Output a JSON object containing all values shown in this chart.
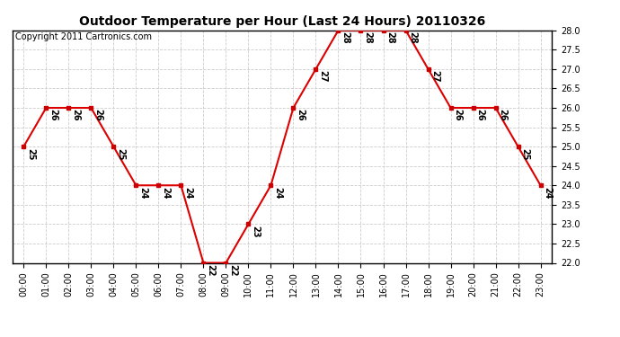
{
  "title": "Outdoor Temperature per Hour (Last 24 Hours) 20110326",
  "copyright_text": "Copyright 2011 Cartronics.com",
  "hours": [
    "00:00",
    "01:00",
    "02:00",
    "03:00",
    "04:00",
    "05:00",
    "06:00",
    "07:00",
    "08:00",
    "09:00",
    "10:00",
    "11:00",
    "12:00",
    "13:00",
    "14:00",
    "15:00",
    "16:00",
    "17:00",
    "18:00",
    "19:00",
    "20:00",
    "21:00",
    "22:00",
    "23:00"
  ],
  "temps": [
    25,
    26,
    26,
    26,
    25,
    24,
    24,
    24,
    22,
    22,
    23,
    24,
    26,
    27,
    28,
    28,
    28,
    28,
    27,
    26,
    26,
    26,
    25,
    24
  ],
  "ylim_min": 22.0,
  "ylim_max": 28.0,
  "ytick_step": 0.5,
  "line_color": "#dd0000",
  "marker_color": "#cc0000",
  "grid_color": "#cccccc",
  "bg_color": "#ffffff",
  "plot_bg_color": "#ffffff",
  "title_fontsize": 10,
  "copyright_fontsize": 7,
  "label_fontsize": 7,
  "tick_fontsize": 7
}
